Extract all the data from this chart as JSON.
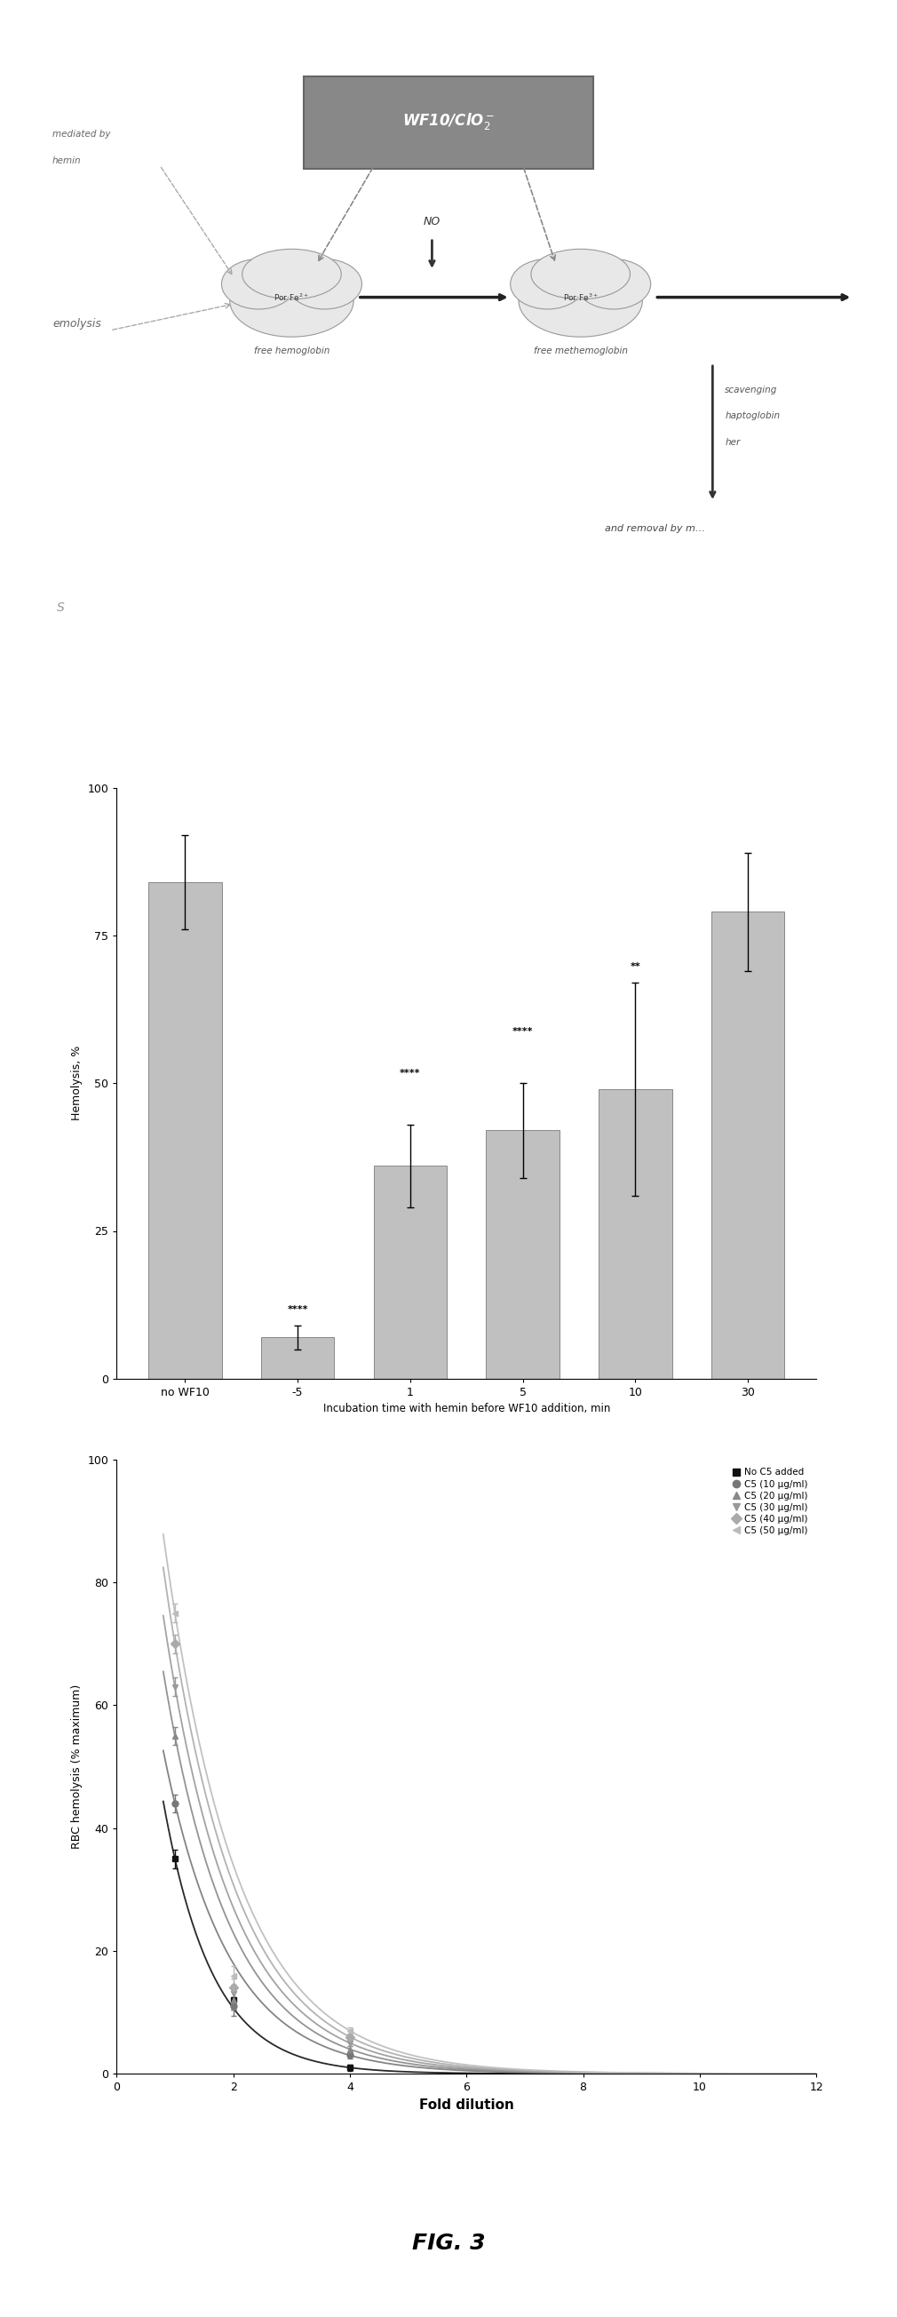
{
  "title": "FIG. 3",
  "panel1": {
    "wf10_label": "WF10/ClO₂⁻"
  },
  "panel2": {
    "categories": [
      "no WF10",
      "-5",
      "1",
      "5",
      "10",
      "30"
    ],
    "values": [
      84,
      7,
      36,
      42,
      49,
      79
    ],
    "errors": [
      8,
      2,
      7,
      8,
      18,
      10
    ],
    "bar_color": "#c0c0c0",
    "bar_edge_color": "#888888",
    "ylabel": "Hemolysis, %",
    "xlabel": "Incubation time with hemin before WF10 addition, min",
    "ylim": [
      0,
      100
    ],
    "yticks": [
      0,
      25,
      50,
      75,
      100
    ],
    "significance": [
      "",
      "****",
      "****",
      "****",
      "**",
      ""
    ]
  },
  "panel3": {
    "xlabel": "Fold dilution",
    "ylabel": "RBC hemolysis (% maximum)",
    "xlim": [
      0,
      12
    ],
    "ylim": [
      0,
      100
    ],
    "xticks": [
      0,
      2,
      4,
      6,
      8,
      10,
      12
    ],
    "yticks": [
      0,
      20,
      40,
      60,
      80,
      100
    ],
    "series": [
      {
        "label": "No C5 added",
        "color": "#222222",
        "marker": "s",
        "x": [
          1,
          2,
          4
        ],
        "y": [
          35,
          12,
          1
        ]
      },
      {
        "label": "C5 (10 μg/ml)",
        "color": "#777777",
        "marker": "o",
        "x": [
          1,
          2,
          4
        ],
        "y": [
          44,
          11,
          3
        ]
      },
      {
        "label": "C5 (20 μg/ml)",
        "color": "#888888",
        "marker": "^",
        "x": [
          1,
          2,
          4
        ],
        "y": [
          55,
          12,
          4
        ]
      },
      {
        "label": "C5 (30 μg/ml)",
        "color": "#999999",
        "marker": "v",
        "x": [
          1,
          2,
          4
        ],
        "y": [
          63,
          13,
          5
        ]
      },
      {
        "label": "C5 (40 μg/ml)",
        "color": "#aaaaaa",
        "marker": "D",
        "x": [
          1,
          2,
          4
        ],
        "y": [
          70,
          14,
          6
        ]
      },
      {
        "label": "C5 (50 μg/ml)",
        "color": "#bbbbbb",
        "marker": "<",
        "x": [
          1,
          2,
          4
        ],
        "y": [
          75,
          16,
          7
        ]
      }
    ]
  }
}
